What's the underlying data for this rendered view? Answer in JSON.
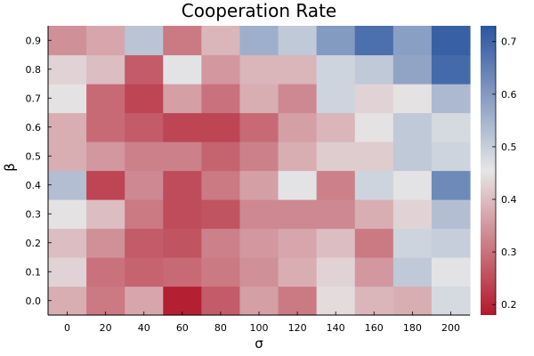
{
  "chart_data": {
    "type": "heatmap",
    "title": "Cooperation Rate",
    "xlabel": "σ",
    "ylabel": "β",
    "x": [
      "0",
      "20",
      "40",
      "60",
      "80",
      "100",
      "120",
      "140",
      "160",
      "180",
      "200"
    ],
    "y": [
      "0.0",
      "0.1",
      "0.2",
      "0.3",
      "0.4",
      "0.5",
      "0.6",
      "0.7",
      "0.8",
      "0.9"
    ],
    "values": [
      [
        0.38,
        0.31,
        0.37,
        0.19,
        0.27,
        0.36,
        0.31,
        0.44,
        0.39,
        0.38,
        0.48
      ],
      [
        0.43,
        0.3,
        0.28,
        0.29,
        0.31,
        0.34,
        0.38,
        0.43,
        0.35,
        0.51,
        0.46
      ],
      [
        0.4,
        0.34,
        0.27,
        0.26,
        0.32,
        0.35,
        0.37,
        0.4,
        0.31,
        0.49,
        0.5
      ],
      [
        0.45,
        0.4,
        0.31,
        0.25,
        0.26,
        0.33,
        0.33,
        0.33,
        0.38,
        0.43,
        0.53
      ],
      [
        0.53,
        0.24,
        0.33,
        0.25,
        0.31,
        0.36,
        0.46,
        0.32,
        0.49,
        0.46,
        0.63
      ],
      [
        0.38,
        0.35,
        0.32,
        0.32,
        0.28,
        0.32,
        0.38,
        0.42,
        0.42,
        0.51,
        0.49
      ],
      [
        0.38,
        0.29,
        0.27,
        0.24,
        0.24,
        0.29,
        0.36,
        0.39,
        0.45,
        0.51,
        0.48
      ],
      [
        0.45,
        0.29,
        0.24,
        0.36,
        0.3,
        0.38,
        0.33,
        0.49,
        0.43,
        0.45,
        0.54
      ],
      [
        0.43,
        0.4,
        0.27,
        0.46,
        0.35,
        0.39,
        0.39,
        0.49,
        0.51,
        0.58,
        0.69
      ],
      [
        0.34,
        0.37,
        0.52,
        0.31,
        0.39,
        0.56,
        0.51,
        0.6,
        0.68,
        0.59,
        0.71
      ]
    ],
    "zlim": [
      0.18,
      0.73
    ],
    "colorbar": {
      "ticks": [
        0.2,
        0.3,
        0.4,
        0.5,
        0.6,
        0.7
      ],
      "tick_labels": [
        "0.2",
        "0.3",
        "0.4",
        "0.5",
        "0.6",
        "0.7"
      ]
    },
    "colormap": {
      "low": "#b2182b",
      "mid": "#e6e6e6",
      "high": "#2a55a0"
    },
    "grid": false,
    "legend": "colorbar-right"
  }
}
